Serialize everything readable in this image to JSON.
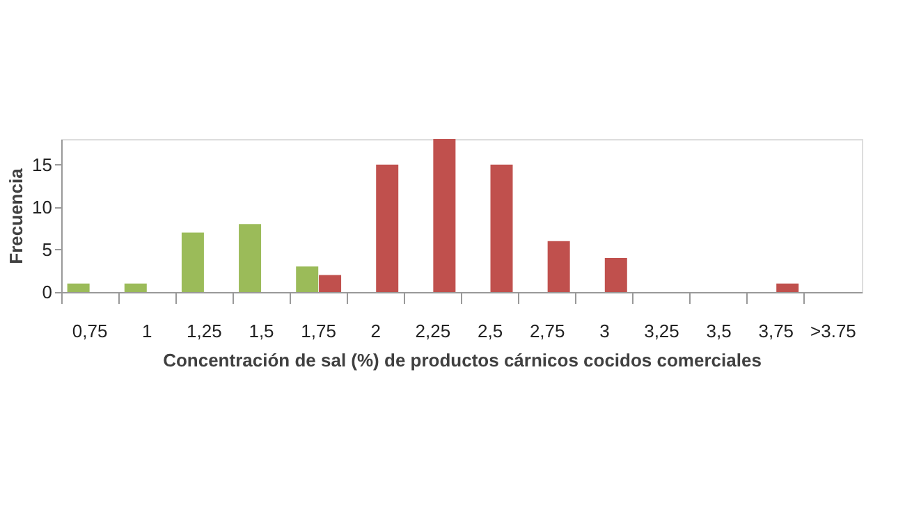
{
  "chart_data": {
    "type": "bar",
    "xlabel": "Concentración de sal (%) de productos cárnicos cocidos comerciales",
    "ylabel": "Frecuencia",
    "categories": [
      "0,75",
      "1",
      "1,25",
      "1,5",
      "1,75",
      "2",
      "2,25",
      "2,5",
      "2,75",
      "3",
      "3,25",
      "3,5",
      "3,75",
      ">3.75"
    ],
    "series": [
      {
        "color": "#9bbb59",
        "values": [
          1,
          1,
          7,
          8,
          3,
          null,
          null,
          null,
          null,
          null,
          null,
          null,
          null,
          null
        ]
      },
      {
        "color": "#c0504d",
        "values": [
          null,
          null,
          null,
          null,
          2,
          15,
          18,
          15,
          6,
          4,
          null,
          null,
          1,
          null
        ]
      }
    ],
    "ylim": [
      0,
      18
    ],
    "yticks": [
      0,
      5,
      10,
      15
    ],
    "grid": false
  }
}
